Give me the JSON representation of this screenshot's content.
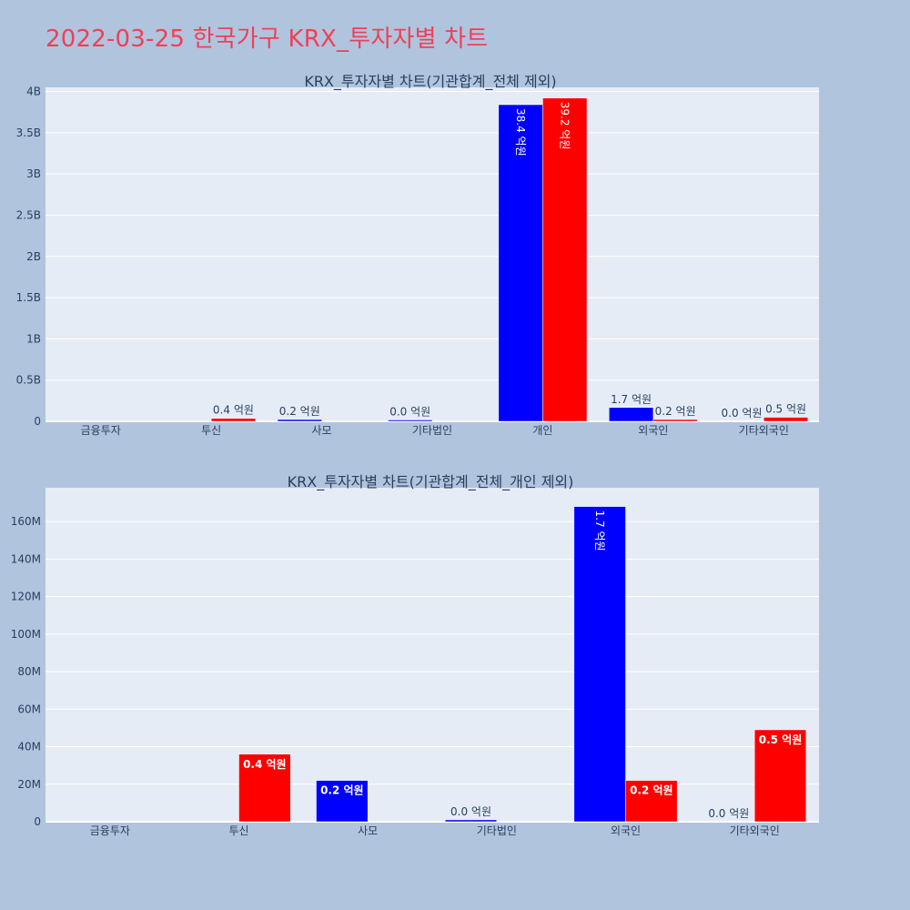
{
  "page": {
    "title": "2022-03-25 한국가구 KRX_투자자별 차트"
  },
  "chart_data": [
    {
      "type": "bar",
      "title": "KRX_투자자별 차트(기관합계_전체 제외)",
      "categories": [
        "금융투자",
        "투신",
        "사모",
        "기타법인",
        "개인",
        "외국인",
        "기타외국인"
      ],
      "ytick_labels": [
        "0",
        "0.5B",
        "1B",
        "1.5B",
        "2B",
        "2.5B",
        "3B",
        "3.5B",
        "4B"
      ],
      "ylim": [
        0,
        4050000000
      ],
      "grid": true,
      "legend": "none",
      "series": [
        {
          "color": "#0000ff",
          "values": [
            0,
            0,
            22000000,
            1000000,
            3840000000,
            168000000,
            0
          ],
          "labels": [
            "",
            "",
            "0.2 억원",
            "0.0 억원",
            "38.4 억원",
            "1.7 억원",
            "0.0 억원"
          ]
        },
        {
          "color": "#ff0000",
          "values": [
            0,
            36000000,
            0,
            0,
            3920000000,
            22000000,
            49000000
          ],
          "labels": [
            "",
            "0.4 억원",
            "",
            "",
            "39.2 억원",
            "0.2 억원",
            "0.5 억원"
          ]
        }
      ]
    },
    {
      "type": "bar",
      "title": "KRX_투자자별 차트(기관합계_전체_개인 제외)",
      "categories": [
        "금융투자",
        "투신",
        "사모",
        "기타법인",
        "외국인",
        "기타외국인"
      ],
      "ytick_labels": [
        "0",
        "20M",
        "40M",
        "60M",
        "80M",
        "100M",
        "120M",
        "140M",
        "160M"
      ],
      "ylim": [
        0,
        178000000
      ],
      "grid": true,
      "legend": "none",
      "series": [
        {
          "color": "#0000ff",
          "values": [
            0,
            0,
            22000000,
            1000000,
            168000000,
            0
          ],
          "labels": [
            "",
            "",
            "0.2 억원",
            "0.0 억원",
            "1.7 억원",
            "0.0 억원"
          ]
        },
        {
          "color": "#ff0000",
          "values": [
            0,
            36000000,
            0,
            0,
            22000000,
            49000000
          ],
          "labels": [
            "",
            "0.4 억원",
            "",
            "",
            "0.2 억원",
            "0.5 억원"
          ]
        }
      ]
    }
  ]
}
